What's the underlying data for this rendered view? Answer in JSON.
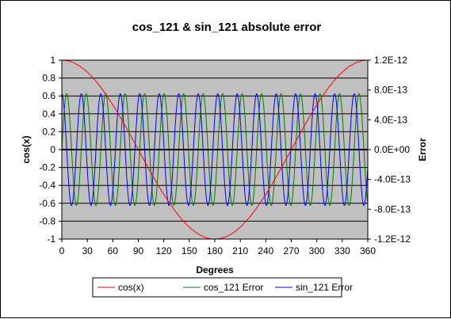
{
  "chart_data": {
    "type": "line",
    "title": "cos_121 &  sin_121 absolute error",
    "xlabel": "Degrees",
    "ylabel": "cos(x)",
    "y2label": "Error",
    "xlim": [
      0,
      360
    ],
    "ylim": [
      -1,
      1
    ],
    "y2lim": [
      -1.2e-12,
      1.2e-12
    ],
    "x_ticks": [
      "0",
      "30",
      "60",
      "90",
      "120",
      "150",
      "180",
      "210",
      "240",
      "270",
      "300",
      "330",
      "360"
    ],
    "y_ticks": [
      "1",
      "0.8",
      "0.6",
      "0.4",
      "0.2",
      "0",
      "-0.2",
      "-0.4",
      "-0.6",
      "-0.8",
      "-1"
    ],
    "y2_ticks": [
      "1.2E-12",
      "8.0E-13",
      "4.0E-13",
      "0.0E+00",
      "-4.0E-13",
      "-8.0E-13",
      "-1.2E-12"
    ],
    "grid": true,
    "plot_background": "#c0c0c0",
    "legend_position": "bottom",
    "series": [
      {
        "name": "cos(x)",
        "axis": "left",
        "color": "#ff0000",
        "x": [
          0,
          30,
          60,
          90,
          120,
          150,
          180,
          210,
          240,
          270,
          300,
          330,
          360
        ],
        "y": [
          1,
          0.866,
          0.5,
          0,
          -0.5,
          -0.866,
          -1,
          -0.866,
          -0.5,
          0,
          0.5,
          0.866,
          1
        ]
      },
      {
        "name": "cos_121 Error",
        "axis": "right",
        "color": "#008000",
        "amplitude": 7.5e-13,
        "approx_cycles_per_360": 15.7,
        "x": [
          0,
          90,
          180,
          270,
          360
        ],
        "y": [
          0,
          0,
          0,
          0,
          0
        ]
      },
      {
        "name": "sin_121 Error",
        "axis": "right",
        "color": "#0000ff",
        "amplitude": 7.5e-13,
        "approx_cycles_per_360": 15.7,
        "x": [
          0,
          90,
          180,
          270,
          360
        ],
        "y": [
          7.5e-13,
          0,
          -7.5e-13,
          0,
          7.5e-13
        ]
      }
    ]
  }
}
